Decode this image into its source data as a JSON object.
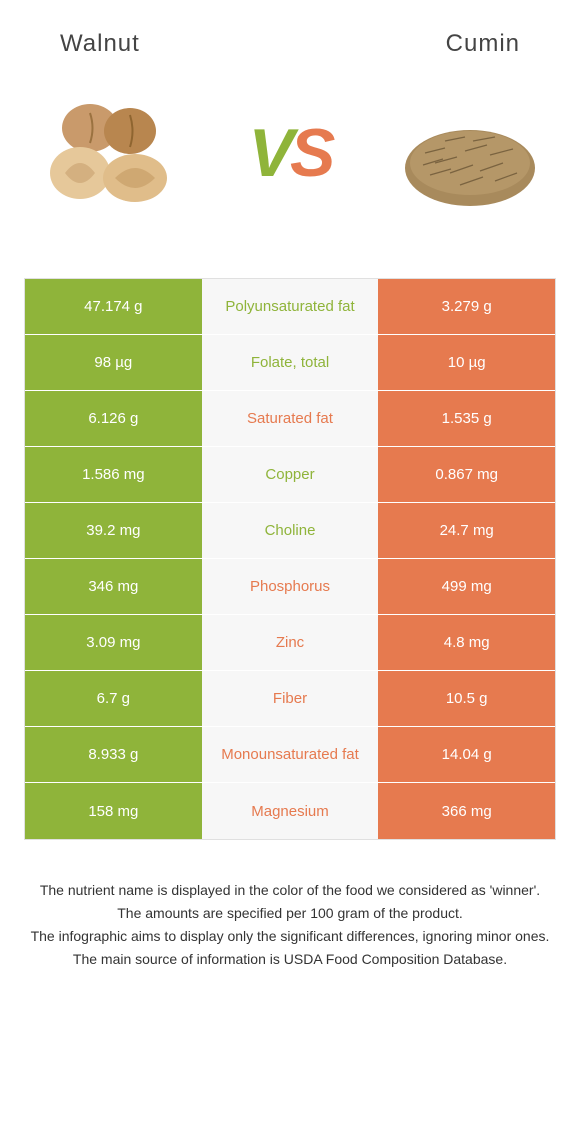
{
  "colors": {
    "left": "#8fb43a",
    "right": "#e67a4f",
    "mid_bg": "#f7f7f7",
    "vs_v": "#8fb43a",
    "vs_s": "#e67a4f",
    "text": "#333333",
    "border": "#e0e0e0"
  },
  "header": {
    "left_title": "Walnut",
    "right_title": "Cumin"
  },
  "vs": {
    "v": "V",
    "s": "S"
  },
  "rows": [
    {
      "left": "47.174 g",
      "label": "Polyunsaturated fat",
      "right": "3.279 g",
      "winner": "left"
    },
    {
      "left": "98 µg",
      "label": "Folate, total",
      "right": "10 µg",
      "winner": "left"
    },
    {
      "left": "6.126 g",
      "label": "Saturated fat",
      "right": "1.535 g",
      "winner": "right"
    },
    {
      "left": "1.586 mg",
      "label": "Copper",
      "right": "0.867 mg",
      "winner": "left"
    },
    {
      "left": "39.2 mg",
      "label": "Choline",
      "right": "24.7 mg",
      "winner": "left"
    },
    {
      "left": "346 mg",
      "label": "Phosphorus",
      "right": "499 mg",
      "winner": "right"
    },
    {
      "left": "3.09 mg",
      "label": "Zinc",
      "right": "4.8 mg",
      "winner": "right"
    },
    {
      "left": "6.7 g",
      "label": "Fiber",
      "right": "10.5 g",
      "winner": "right"
    },
    {
      "left": "8.933 g",
      "label": "Monounsaturated fat",
      "right": "14.04 g",
      "winner": "right"
    },
    {
      "left": "158 mg",
      "label": "Magnesium",
      "right": "366 mg",
      "winner": "right"
    }
  ],
  "footer": {
    "l1": "The nutrient name is displayed in the color of the food we considered as 'winner'.",
    "l2": "The amounts are specified per 100 gram of the product.",
    "l3": "The infographic aims to display only the significant differences, ignoring minor ones.",
    "l4": "The main source of information is USDA Food Composition Database."
  }
}
